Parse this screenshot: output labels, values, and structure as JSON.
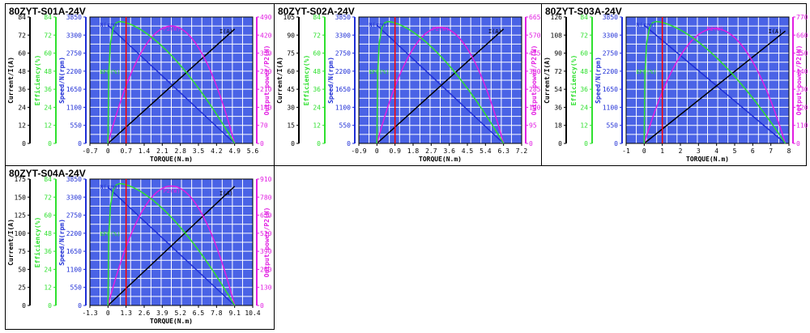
{
  "palette": {
    "grid_bg": "#4a63e6",
    "grid_line": "#ffffff",
    "speed": "#1f2fd6",
    "efficiency": "#2fe02f",
    "power": "#e21ee2",
    "current": "#000000",
    "rated_marker": "#ff0000"
  },
  "axis_labels": {
    "current": "Current/I(A)",
    "efficiency": "Efficiency(%)",
    "speed": "Speed/N(rpm)",
    "power": "Output power/P2(W)",
    "torque": "TORQUE(N.m)"
  },
  "series_labels": {
    "speed": "N(rpm)",
    "power": "P2(W)",
    "current": "I(A)",
    "efficiency": "EFF(%)"
  },
  "chart_data": [
    {
      "type": "line",
      "title": "80ZYT-S01A-24V",
      "x_ticks": [
        "-0.7",
        "0",
        "0.7",
        "1.4",
        "2.1",
        "2.8",
        "3.5",
        "4.2",
        "4.9",
        "5.6"
      ],
      "current_ticks": [
        "0",
        "12",
        "24",
        "36",
        "48",
        "60",
        "72",
        "84"
      ],
      "efficiency_ticks": [
        "0",
        "12",
        "24",
        "36",
        "48",
        "60",
        "72",
        "84"
      ],
      "speed_ticks": [
        "0",
        "550",
        "1100",
        "1650",
        "2200",
        "2750",
        "3300",
        "3850"
      ],
      "power_ticks": [
        "0",
        "70",
        "140",
        "210",
        "280",
        "350",
        "420",
        "490"
      ],
      "xlim": [
        -0.7,
        5.6
      ],
      "rated_torque": 0.7,
      "stall_torque": 4.9,
      "speed_no_load": 3600,
      "speed_max": 3850,
      "power_peak": 455,
      "power_max": 490,
      "current_stall": 76,
      "current_max": 84,
      "eff_peak": 81,
      "eff_peak_torque": 0.45,
      "eff_max": 84
    },
    {
      "type": "line",
      "title": "80ZYT-S02A-24V",
      "x_ticks": [
        "-0.9",
        "0",
        "0.9",
        "1.8",
        "2.7",
        "3.6",
        "4.5",
        "5.4",
        "6.3",
        "7.2"
      ],
      "current_ticks": [
        "0",
        "15",
        "30",
        "45",
        "60",
        "75",
        "90",
        "105"
      ],
      "efficiency_ticks": [
        "0",
        "12",
        "24",
        "36",
        "48",
        "60",
        "72",
        "84"
      ],
      "speed_ticks": [
        "0",
        "550",
        "1100",
        "1650",
        "2200",
        "2750",
        "3300",
        "3850"
      ],
      "power_ticks": [
        "0",
        "95",
        "190",
        "285",
        "380",
        "475",
        "570",
        "665"
      ],
      "xlim": [
        -0.9,
        7.2
      ],
      "rated_torque": 0.9,
      "stall_torque": 6.3,
      "speed_no_load": 3600,
      "speed_max": 3850,
      "power_peak": 610,
      "power_max": 665,
      "current_stall": 95,
      "current_max": 105,
      "eff_peak": 81,
      "eff_peak_torque": 0.55,
      "eff_max": 84
    },
    {
      "type": "line",
      "title": "80ZYT-S03A-24V",
      "x_ticks": [
        "-1",
        "0",
        "1",
        "2",
        "3",
        "4",
        "5",
        "6",
        "7",
        "8"
      ],
      "current_ticks": [
        "0",
        "18",
        "36",
        "54",
        "72",
        "90",
        "108",
        "126"
      ],
      "efficiency_ticks": [
        "0",
        "12",
        "24",
        "36",
        "48",
        "60",
        "72",
        "84"
      ],
      "speed_ticks": [
        "0",
        "550",
        "1100",
        "1650",
        "2200",
        "2750",
        "3300",
        "3850"
      ],
      "power_ticks": [
        "0",
        "110",
        "220",
        "330",
        "440",
        "550",
        "660",
        "770"
      ],
      "xlim": [
        -1,
        8
      ],
      "rated_torque": 1,
      "stall_torque": 7.8,
      "speed_no_load": 3600,
      "speed_max": 3850,
      "power_peak": 700,
      "power_max": 770,
      "current_stall": 112,
      "current_max": 126,
      "eff_peak": 81,
      "eff_peak_torque": 0.65,
      "eff_max": 84
    },
    {
      "type": "line",
      "title": "80ZYT-S04A-24V",
      "x_ticks": [
        "-1.3",
        "0",
        "1.3",
        "2.6",
        "3.9",
        "5.2",
        "6.5",
        "7.8",
        "9.1",
        "10.4"
      ],
      "current_ticks": [
        "0",
        "25",
        "50",
        "75",
        "100",
        "125",
        "150",
        "175"
      ],
      "efficiency_ticks": [
        "0",
        "12",
        "24",
        "36",
        "48",
        "60",
        "72",
        "84"
      ],
      "speed_ticks": [
        "0",
        "550",
        "1100",
        "1650",
        "2200",
        "2750",
        "3300",
        "3850"
      ],
      "power_ticks": [
        "0",
        "130",
        "260",
        "390",
        "520",
        "650",
        "780",
        "910"
      ],
      "xlim": [
        -1.3,
        10.4
      ],
      "rated_torque": 1.3,
      "stall_torque": 9.1,
      "speed_no_load": 3600,
      "speed_max": 3850,
      "power_peak": 860,
      "power_max": 910,
      "current_stall": 165,
      "current_max": 175,
      "eff_peak": 81,
      "eff_peak_torque": 0.85,
      "eff_max": 84
    }
  ]
}
